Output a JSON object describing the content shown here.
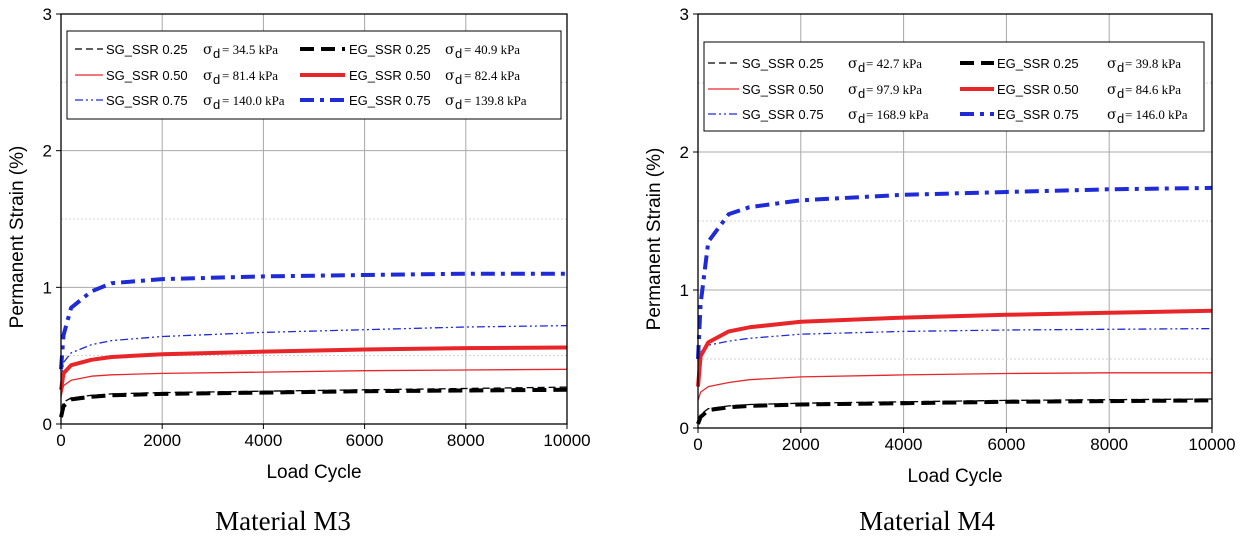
{
  "chart_data": [
    {
      "type": "line",
      "caption": "Material M3",
      "xlabel": "Load Cycle",
      "ylabel": "Permanent Strain (%)",
      "xlim": [
        0,
        10000
      ],
      "ylim": [
        0,
        3
      ],
      "xticks": [
        "0",
        "2000",
        "4000",
        "6000",
        "8000",
        "10000"
      ],
      "yticks": [
        "0",
        "1",
        "2",
        "3"
      ],
      "grid": true,
      "legend_position": "top",
      "series": [
        {
          "name": "SG_SSR 0.25",
          "stress": "σd= 34.5 kPa",
          "sigma_sym": "σ",
          "sigma_sub": "d",
          "stress_value": "= 34.5 kPa",
          "color": "#000000",
          "style": "dash",
          "x": [
            0,
            50,
            200,
            600,
            1000,
            2000,
            4000,
            6000,
            8000,
            10000
          ],
          "values": [
            0.1,
            0.16,
            0.19,
            0.21,
            0.22,
            0.23,
            0.24,
            0.25,
            0.26,
            0.27
          ]
        },
        {
          "name": "SG_SSR 0.50",
          "stress": "σd= 81.4 kPa",
          "sigma_sym": "σ",
          "sigma_sub": "d",
          "stress_value": "= 81.4 kPa",
          "color": "#e8262a",
          "style": "thin",
          "x": [
            0,
            50,
            200,
            600,
            1000,
            2000,
            4000,
            6000,
            8000,
            10000
          ],
          "values": [
            0.2,
            0.28,
            0.32,
            0.35,
            0.36,
            0.37,
            0.38,
            0.39,
            0.395,
            0.4
          ]
        },
        {
          "name": "SG_SSR 0.75",
          "stress": "σd= 140.0 kPa",
          "sigma_sym": "σ",
          "sigma_sub": "d",
          "stress_value": "= 140.0 kPa",
          "color": "#1f2bd6",
          "style": "dashdotdot",
          "x": [
            0,
            50,
            200,
            600,
            1000,
            2000,
            4000,
            6000,
            8000,
            10000
          ],
          "values": [
            0.3,
            0.45,
            0.52,
            0.58,
            0.61,
            0.64,
            0.67,
            0.69,
            0.71,
            0.72
          ]
        },
        {
          "name": "EG_SSR 0.25",
          "stress": "σd= 40.9 kPa",
          "sigma_sym": "σ",
          "sigma_sub": "d",
          "stress_value": "= 40.9 kPa",
          "color": "#000000",
          "style": "thickdash",
          "x": [
            0,
            50,
            200,
            600,
            1000,
            2000,
            4000,
            6000,
            8000,
            10000
          ],
          "values": [
            0.05,
            0.13,
            0.18,
            0.2,
            0.21,
            0.22,
            0.23,
            0.24,
            0.245,
            0.25
          ]
        },
        {
          "name": "EG_SSR 0.50",
          "stress": "σd= 82.4 kPa",
          "sigma_sym": "σ",
          "sigma_sub": "d",
          "stress_value": "= 82.4 kPa",
          "color": "#e8262a",
          "style": "thick",
          "x": [
            0,
            50,
            200,
            600,
            1000,
            2000,
            4000,
            6000,
            8000,
            10000
          ],
          "values": [
            0.25,
            0.37,
            0.43,
            0.47,
            0.49,
            0.51,
            0.53,
            0.545,
            0.555,
            0.56
          ]
        },
        {
          "name": "EG_SSR 0.75",
          "stress": "σd= 139.8 kPa",
          "sigma_sym": "σ",
          "sigma_sub": "d",
          "stress_value": "= 139.8 kPa",
          "color": "#1f2bd6",
          "style": "thickdashdot",
          "x": [
            0,
            50,
            200,
            600,
            1000,
            2000,
            4000,
            6000,
            8000,
            10000
          ],
          "values": [
            0.4,
            0.65,
            0.85,
            0.97,
            1.03,
            1.06,
            1.08,
            1.09,
            1.1,
            1.1
          ]
        }
      ]
    },
    {
      "type": "line",
      "caption": "Material M4",
      "xlabel": "Load Cycle",
      "ylabel": "Permanent Strain (%)",
      "xlim": [
        0,
        10000
      ],
      "ylim": [
        0,
        3
      ],
      "xticks": [
        "0",
        "2000",
        "4000",
        "6000",
        "8000",
        "10000"
      ],
      "yticks": [
        "0",
        "1",
        "2",
        "3"
      ],
      "grid": true,
      "legend_position": "top",
      "series": [
        {
          "name": "SG_SSR 0.25",
          "stress": "σd= 42.7 kPa",
          "sigma_sym": "σ",
          "sigma_sub": "d",
          "stress_value": "= 42.7 kPa",
          "color": "#000000",
          "style": "dash",
          "x": [
            0,
            50,
            200,
            600,
            1000,
            2000,
            4000,
            6000,
            8000,
            10000
          ],
          "values": [
            0.05,
            0.1,
            0.14,
            0.16,
            0.17,
            0.18,
            0.19,
            0.2,
            0.205,
            0.21
          ]
        },
        {
          "name": "SG_SSR 0.50",
          "stress": "σd= 97.9 kPa",
          "sigma_sym": "σ",
          "sigma_sub": "d",
          "stress_value": "= 97.9 kPa",
          "color": "#e8262a",
          "style": "thin",
          "x": [
            0,
            50,
            200,
            600,
            1000,
            2000,
            4000,
            6000,
            8000,
            10000
          ],
          "values": [
            0.2,
            0.26,
            0.3,
            0.33,
            0.35,
            0.37,
            0.385,
            0.395,
            0.4,
            0.4
          ]
        },
        {
          "name": "SG_SSR 0.75",
          "stress": "σd= 168.9 kPa",
          "sigma_sym": "σ",
          "sigma_sub": "d",
          "stress_value": "= 168.9 kPa",
          "color": "#1f2bd6",
          "style": "dashdotdot",
          "x": [
            0,
            50,
            200,
            600,
            1000,
            2000,
            4000,
            6000,
            8000,
            10000
          ],
          "values": [
            0.4,
            0.55,
            0.6,
            0.63,
            0.65,
            0.68,
            0.7,
            0.71,
            0.715,
            0.72
          ]
        },
        {
          "name": "EG_SSR 0.25",
          "stress": "σd= 39.8 kPa",
          "sigma_sym": "σ",
          "sigma_sub": "d",
          "stress_value": "= 39.8 kPa",
          "color": "#000000",
          "style": "thickdash",
          "x": [
            0,
            50,
            200,
            600,
            1000,
            2000,
            4000,
            6000,
            8000,
            10000
          ],
          "values": [
            0.03,
            0.08,
            0.13,
            0.15,
            0.16,
            0.17,
            0.18,
            0.19,
            0.195,
            0.2
          ]
        },
        {
          "name": "EG_SSR 0.50",
          "stress": "σd= 84.6 kPa",
          "sigma_sym": "σ",
          "sigma_sub": "d",
          "stress_value": "= 84.6 kPa",
          "color": "#e8262a",
          "style": "thick",
          "x": [
            0,
            50,
            200,
            600,
            1000,
            2000,
            4000,
            6000,
            8000,
            10000
          ],
          "values": [
            0.3,
            0.52,
            0.62,
            0.7,
            0.73,
            0.77,
            0.8,
            0.82,
            0.835,
            0.85
          ]
        },
        {
          "name": "EG_SSR 0.75",
          "stress": "σd= 146.0 kPa",
          "sigma_sym": "σ",
          "sigma_sub": "d",
          "stress_value": "= 146.0 kPa",
          "color": "#1f2bd6",
          "style": "thickdashdot",
          "x": [
            0,
            50,
            200,
            600,
            1000,
            2000,
            4000,
            6000,
            8000,
            10000
          ],
          "values": [
            0.5,
            0.9,
            1.35,
            1.55,
            1.6,
            1.65,
            1.69,
            1.71,
            1.73,
            1.74
          ]
        }
      ]
    }
  ]
}
